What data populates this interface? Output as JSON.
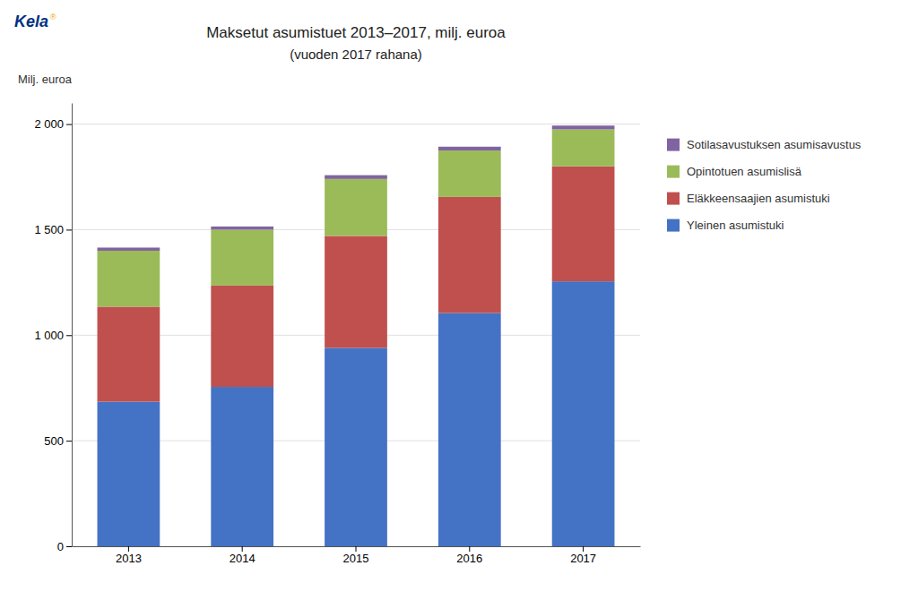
{
  "chart_data": {
    "type": "bar",
    "stacked": true,
    "title": "Maksetut asumistuet 2013–2017, milj. euroa",
    "subtitle": "(vuoden 2017 rahana)",
    "ylabel": "Milj. euroa",
    "annotations": [
      {
        "text": "Kela",
        "color": "#003082"
      },
      {
        "text": "®",
        "color": "#f0a500"
      }
    ],
    "categories": [
      "2013",
      "2014",
      "2015",
      "2016",
      "2017"
    ],
    "series": [
      {
        "name": "Yleinen asumistuki",
        "color": "#4472C4",
        "values": [
          685,
          755,
          940,
          1105,
          1255
        ]
      },
      {
        "name": "Eläkkeensaajien asumistuki",
        "color": "#C0504D",
        "values": [
          450,
          480,
          530,
          550,
          545
        ]
      },
      {
        "name": "Opintotuen asumislisä",
        "color": "#9BBB59",
        "values": [
          265,
          265,
          270,
          220,
          175
        ]
      },
      {
        "name": "Sotilasavustuksen asumisavustus",
        "color": "#8064A2",
        "values": [
          15,
          15,
          18,
          18,
          18
        ]
      }
    ],
    "ylim": [
      0,
      2100
    ],
    "yticks": [
      0,
      500,
      {
        "value": 1000,
        "label": "1 000"
      },
      {
        "value": 1500,
        "label": "1 500"
      },
      {
        "value": 2000,
        "label": "2 000"
      }
    ],
    "grid": true,
    "legend": "right"
  }
}
